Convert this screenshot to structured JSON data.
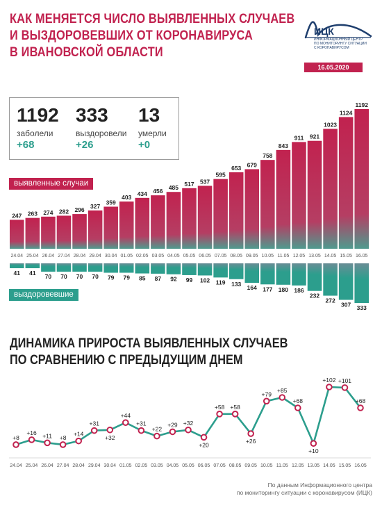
{
  "title": {
    "line1": "КАК МЕНЯЕТСЯ ЧИСЛО ВЫЯВЛЕННЫХ СЛУЧАЕВ",
    "line2": "И ВЫЗДОРОВЕВШИХ ОТ КОРОНАВИРУСА",
    "line3": "В ИВАНОВСКОЙ ОБЛАСТИ"
  },
  "logo": {
    "abbr": "ИЦК",
    "org_line1": "ИНФОРМАЦИОННЫЙ ЦЕНТР",
    "org_line2": "ПО МОНИТОРИНГУ СИТУАЦИИ",
    "org_line3": "С КОРОНАВИРУСОМ",
    "icon": "heartbeat-arc-icon"
  },
  "date": "16.05.2020",
  "stats": {
    "infected": {
      "value": "1192",
      "label": "заболели",
      "change": "+68"
    },
    "recovered": {
      "value": "333",
      "label": "выздоровели",
      "change": "+26"
    },
    "deaths": {
      "value": "13",
      "label": "умерли",
      "change": "+0"
    }
  },
  "labels": {
    "cases": "выявленные случаи",
    "recovered": "выздоровевшие"
  },
  "subtitle": {
    "line1": "ДИНАМИКА ПРИРОСТА ВЫЯВЛЕННЫХ СЛУЧАЕВ",
    "line2": "ПО СРАВНЕНИЮ С ПРЕДЫДУЩИМ ДНЕМ"
  },
  "footer": {
    "line1": "По данным Информационного центра",
    "line2": "по мониторингу ситуации с коронавирусом (ИЦК)"
  },
  "colors": {
    "red": "#c1224f",
    "teal": "#2c9e8d",
    "dark": "#222222"
  },
  "chart_data": [
    {
      "type": "bar",
      "categories": [
        "24.04",
        "25.04",
        "26.04",
        "27.04",
        "28.04",
        "29.04",
        "30.04",
        "01.05",
        "02.05",
        "03.05",
        "04.05",
        "05.05",
        "06.05",
        "07.05",
        "08.05",
        "09.05",
        "10.05",
        "11.05",
        "12.05",
        "13.05",
        "14.05",
        "15.05",
        "16.05"
      ],
      "series": [
        {
          "name": "выявленные случаи",
          "values": [
            247,
            263,
            274,
            282,
            296,
            327,
            359,
            403,
            434,
            456,
            485,
            517,
            537,
            595,
            653,
            679,
            758,
            843,
            911,
            921,
            1023,
            1124,
            1192
          ]
        },
        {
          "name": "выздоровевшие",
          "values": [
            41,
            41,
            70,
            70,
            70,
            70,
            79,
            79,
            85,
            87,
            92,
            99,
            102,
            119,
            133,
            164,
            177,
            180,
            186,
            232,
            272,
            307,
            333
          ]
        }
      ]
    },
    {
      "type": "line",
      "categories": [
        "24.04",
        "25.04",
        "26.04",
        "27.04",
        "28.04",
        "29.04",
        "30.04",
        "01.05",
        "02.05",
        "03.05",
        "04.05",
        "05.05",
        "06.05",
        "07.05",
        "08.05",
        "09.05",
        "10.05",
        "11.05",
        "12.05",
        "13.05",
        "14.05",
        "15.05",
        "16.05"
      ],
      "values": [
        8,
        16,
        11,
        8,
        14,
        31,
        32,
        44,
        31,
        22,
        29,
        32,
        20,
        58,
        58,
        26,
        79,
        85,
        68,
        10,
        102,
        101,
        68
      ],
      "labels": [
        "+8",
        "+16",
        "+11",
        "+8",
        "+14",
        "+31",
        "+32",
        "+44",
        "+31",
        "+22",
        "+29",
        "+32",
        "+20",
        "+58",
        "+58",
        "+26",
        "+79",
        "+85",
        "+68",
        "+10",
        "+102",
        "+101",
        "+68"
      ]
    }
  ]
}
